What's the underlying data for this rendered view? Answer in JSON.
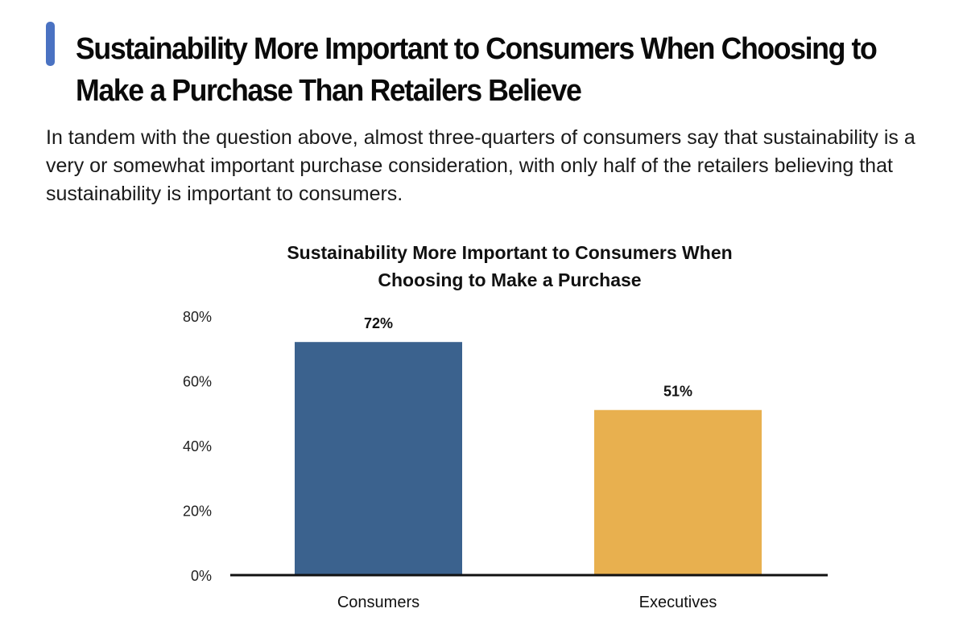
{
  "page": {
    "heading": "Sustainability More Important to Consumers When Choosing to Make a Purchase Than Retailers Believe",
    "intro": "In tandem with the question above, almost three-quarters of consumers say that sustainability is a very or somewhat important purchase consideration, with only half of the retailers believing that sustainability is important to consumers.",
    "accent_color": "#4a72c2"
  },
  "chart_data": {
    "type": "bar",
    "title": "Sustainability More Important to Consumers When Choosing to Make a Purchase",
    "title_lines": [
      "Sustainability More Important to Consumers When",
      "Choosing to Make a Purchase"
    ],
    "categories": [
      "Consumers",
      "Executives"
    ],
    "values": [
      72,
      51
    ],
    "value_labels": [
      "72%",
      "51%"
    ],
    "colors": [
      "#3b628e",
      "#e8b04f"
    ],
    "ylim": [
      0,
      80
    ],
    "yticks": [
      0,
      20,
      40,
      60,
      80
    ],
    "ytick_labels": [
      "0%",
      "20%",
      "40%",
      "60%",
      "80%"
    ],
    "xlabel": "",
    "ylabel": "",
    "grid": false,
    "legend": "none"
  }
}
